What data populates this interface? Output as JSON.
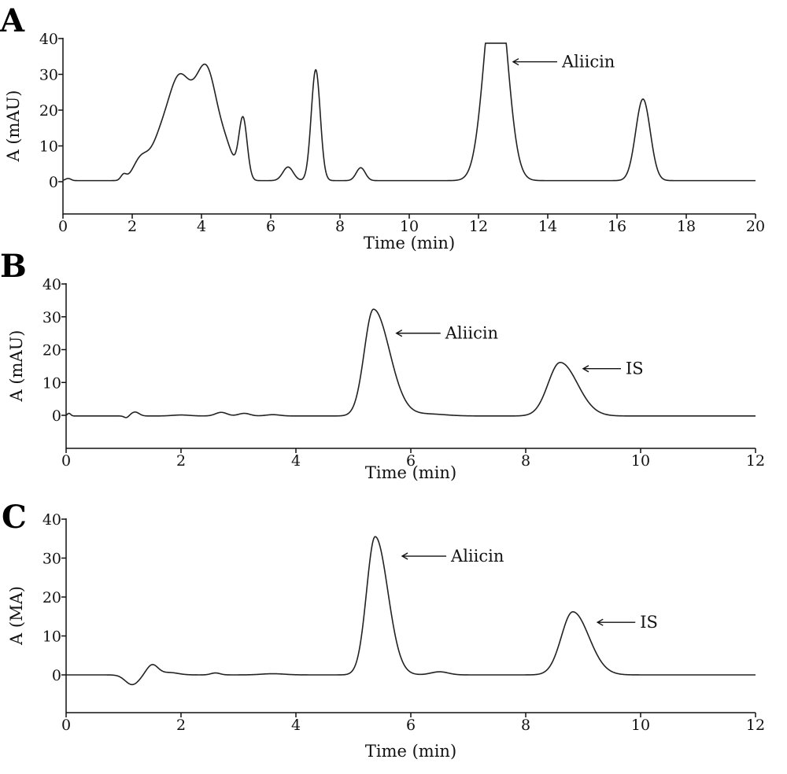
{
  "chart_data": [
    {
      "type": "line",
      "panel_label": "A",
      "xlabel": "Time (min)",
      "ylabel": "A (mAU)",
      "xlim": [
        0,
        20
      ],
      "ylim": [
        -9,
        40
      ],
      "xticks": [
        0,
        2,
        4,
        6,
        8,
        10,
        12,
        14,
        16,
        18,
        20
      ],
      "yticks": [
        0,
        10,
        20,
        30,
        40
      ],
      "baseline": 0.3,
      "series": [
        {
          "peaks": [
            {
              "rt": 0.15,
              "h": 0.6,
              "sigma": 0.08
            },
            {
              "rt": 1.75,
              "h": 1.5,
              "sigma": 0.08
            },
            {
              "rt": 2.25,
              "h": 6.0,
              "sigma": 0.22
            },
            {
              "rt": 2.75,
              "h": 7.0,
              "sigma": 0.25
            },
            {
              "rt": 3.35,
              "h": 28.0,
              "sigma": 0.35
            },
            {
              "rt": 4.15,
              "h": 30.0,
              "sigma": 0.32
            },
            {
              "rt": 4.75,
              "h": 6.0,
              "sigma": 0.22
            },
            {
              "rt": 5.2,
              "h": 17.0,
              "sigma": 0.12
            },
            {
              "rt": 6.5,
              "h": 3.8,
              "sigma": 0.15
            },
            {
              "rt": 7.3,
              "h": 31.0,
              "sigma": 0.13
            },
            {
              "rt": 8.6,
              "h": 3.6,
              "sigma": 0.13
            },
            {
              "rt": 12.5,
              "h": 60.0,
              "sigma": 0.32
            },
            {
              "rt": 16.75,
              "h": 22.8,
              "sigma": 0.21
            }
          ],
          "clip_max": 38.7
        }
      ],
      "annotations": [
        {
          "text": "Aliicin",
          "arrow_tip": [
            13.0,
            33.5
          ]
        }
      ]
    },
    {
      "type": "line",
      "panel_label": "B",
      "xlabel": "Time (min)",
      "ylabel": "A (mAU)",
      "xlim": [
        0,
        12
      ],
      "ylim": [
        -10,
        40
      ],
      "xticks": [
        0,
        2,
        4,
        6,
        8,
        10,
        12
      ],
      "yticks": [
        0,
        10,
        20,
        30,
        40
      ],
      "baseline": -0.2,
      "series": [
        {
          "peaks": [
            {
              "rt": 0.05,
              "h": 0.8,
              "sigma": 0.03
            },
            {
              "rt": 1.05,
              "h": -0.6,
              "sigma": 0.04
            },
            {
              "rt": 1.2,
              "h": 1.2,
              "sigma": 0.07
            },
            {
              "rt": 2.0,
              "h": 0.3,
              "sigma": 0.15
            },
            {
              "rt": 2.7,
              "h": 1.1,
              "sigma": 0.1
            },
            {
              "rt": 3.1,
              "h": 0.8,
              "sigma": 0.1
            },
            {
              "rt": 3.6,
              "h": 0.4,
              "sigma": 0.12
            },
            {
              "rt": 5.35,
              "h": 32.5,
              "sigma": 0.16,
              "tail": 0.28
            },
            {
              "rt": 6.3,
              "h": 0.6,
              "sigma": 0.3
            },
            {
              "rt": 8.6,
              "h": 16.3,
              "sigma": 0.21,
              "tail": 0.3
            }
          ]
        }
      ],
      "annotations": [
        {
          "text": "Aliicin",
          "arrow_tip": [
            5.75,
            25.0
          ]
        },
        {
          "text": "IS",
          "arrow_tip": [
            9.0,
            14.2
          ]
        }
      ]
    },
    {
      "type": "line",
      "panel_label": "C",
      "xlabel": "Time (min)",
      "ylabel": "A (MA)",
      "xlim": [
        0,
        12
      ],
      "ylim": [
        -10,
        40
      ],
      "xticks": [
        0,
        2,
        4,
        6,
        8,
        10,
        12
      ],
      "yticks": [
        0,
        10,
        20,
        30,
        40
      ],
      "baseline": 0.0,
      "series": [
        {
          "peaks": [
            {
              "rt": 1.15,
              "h": -2.5,
              "sigma": 0.12
            },
            {
              "rt": 1.5,
              "h": 2.6,
              "sigma": 0.1
            },
            {
              "rt": 1.8,
              "h": 0.6,
              "sigma": 0.15
            },
            {
              "rt": 2.6,
              "h": 0.5,
              "sigma": 0.08
            },
            {
              "rt": 3.6,
              "h": 0.3,
              "sigma": 0.2
            },
            {
              "rt": 5.38,
              "h": 35.5,
              "sigma": 0.15,
              "tail": 0.22
            },
            {
              "rt": 6.5,
              "h": 0.8,
              "sigma": 0.15
            },
            {
              "rt": 8.82,
              "h": 16.2,
              "sigma": 0.2,
              "tail": 0.28
            }
          ]
        }
      ],
      "annotations": [
        {
          "text": "Aliicin",
          "arrow_tip": [
            5.85,
            30.5
          ]
        },
        {
          "text": "IS",
          "arrow_tip": [
            9.25,
            13.5
          ]
        }
      ]
    }
  ]
}
